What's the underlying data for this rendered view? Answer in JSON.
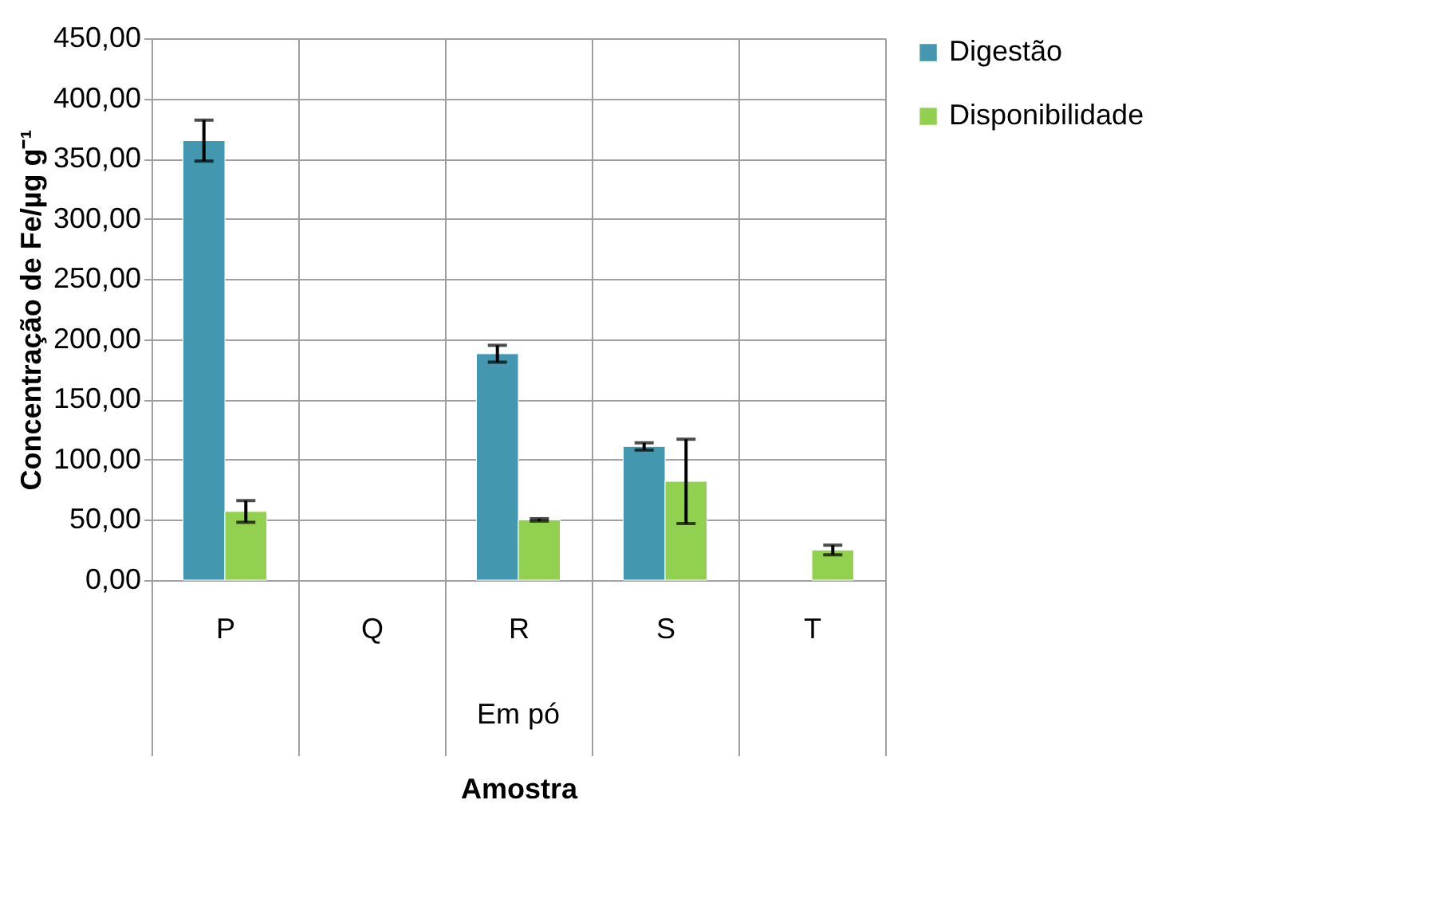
{
  "chart_data": {
    "type": "bar",
    "xlabel": "Amostra",
    "ylabel": "Concentração de Fe/µg g⁻¹",
    "categories": [
      "P",
      "Q",
      "R",
      "S",
      "T"
    ],
    "series": [
      {
        "name": "Digestão",
        "color": "#4397ae",
        "values": [
          365,
          null,
          188,
          111,
          null
        ],
        "errors": [
          17,
          null,
          7,
          3,
          null
        ]
      },
      {
        "name": "Disponibilidade",
        "color": "#92d050",
        "values": [
          57,
          null,
          50,
          82,
          25
        ],
        "errors": [
          9,
          null,
          1,
          35,
          4
        ]
      }
    ],
    "ylim": [
      0,
      450
    ],
    "yticks": [
      {
        "value": 0,
        "label": "0,00"
      },
      {
        "value": 50,
        "label": "50,00"
      },
      {
        "value": 100,
        "label": "100,00"
      },
      {
        "value": 150,
        "label": "150,00"
      },
      {
        "value": 200,
        "label": "200,00"
      },
      {
        "value": 250,
        "label": "250,00"
      },
      {
        "value": 300,
        "label": "300,00"
      },
      {
        "value": 350,
        "label": "350,00"
      },
      {
        "value": 400,
        "label": "400,00"
      },
      {
        "value": 450,
        "label": "450,00"
      }
    ],
    "annotations": [
      "Em pó"
    ],
    "grid": "y",
    "legend": "right"
  }
}
